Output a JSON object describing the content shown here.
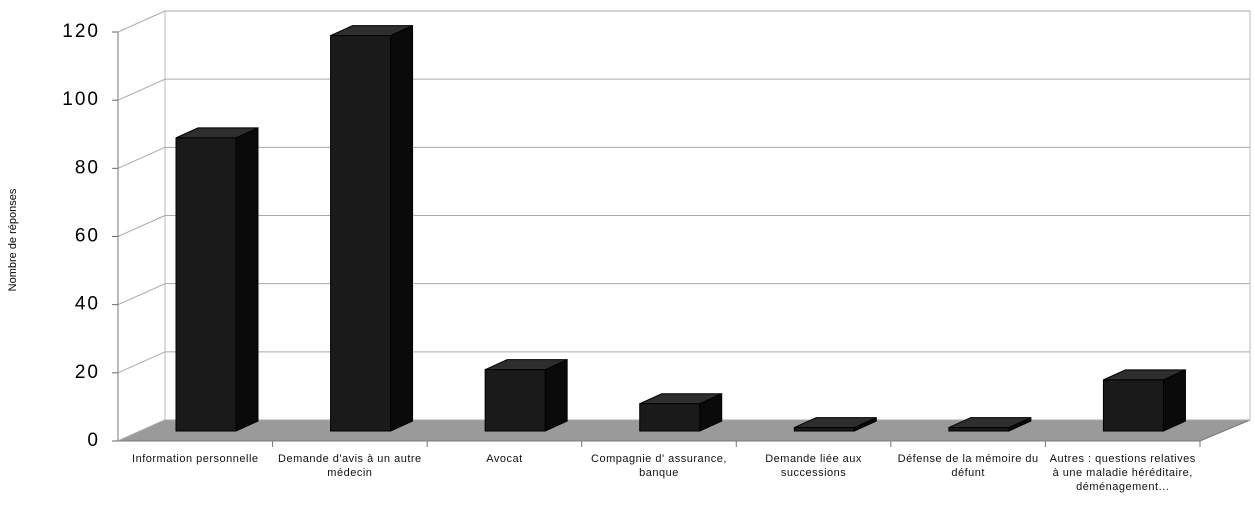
{
  "chart_data": {
    "type": "bar",
    "y_label": "Nombre de réponses",
    "categories": [
      "Information personnelle",
      "Demande d'avis à un autre médecin",
      "Avocat",
      "Compagnie d' assurance, banque",
      "Demande liée aux successions",
      "Défense de la mémoire du défunt",
      "Autres : questions relatives à une maladie héréditaire, déménagement..."
    ],
    "values": [
      86,
      116,
      18,
      8,
      1,
      1,
      15
    ],
    "color": "#1a1a1a",
    "ylim": [
      0,
      120
    ],
    "yticks": [
      0,
      20,
      40,
      60,
      80,
      100,
      120
    ],
    "grid": true
  }
}
